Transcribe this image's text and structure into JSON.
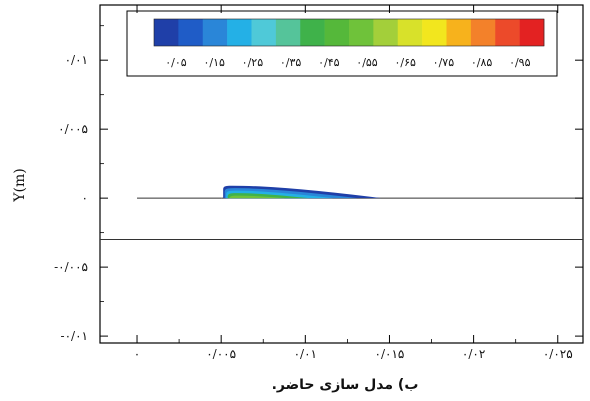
{
  "chart_data": {
    "type": "heatmap",
    "title": "",
    "xlabel": "",
    "ylabel": "Y(m)",
    "xlim": [
      -0.0022,
      0.0265
    ],
    "ylim": [
      -0.0105,
      0.014
    ],
    "x_ticks": [
      0,
      0.005,
      0.01,
      0.015,
      0.02,
      0.025
    ],
    "x_tick_labels": [
      "٠",
      "٠/٠٠۵",
      "٠/٠١",
      "٠/٠١۵",
      "٠/٠٢",
      "٠/٠٢۵"
    ],
    "y_ticks": [
      -0.01,
      -0.005,
      0,
      0.005,
      0.01
    ],
    "y_tick_labels": [
      "-٠/٠١",
      "-٠/٠٠۵",
      "٠",
      "٠/٠٠۵",
      "٠/٠١"
    ],
    "legend": {
      "placement": "top",
      "labels": [
        "٠/٠۵",
        "٠/١۵",
        "٠/٢۵",
        "٠/٣۵",
        "٠/۴۵",
        "٠/۵۵",
        "٠/۶۵",
        "٠/٧۵",
        "٠/٨۵",
        "٠/٩۵"
      ],
      "levels": [
        0.05,
        0.15,
        0.25,
        0.35,
        0.45,
        0.55,
        0.65,
        0.75,
        0.85,
        0.95
      ],
      "colors": [
        "#1f3fa8",
        "#1f5cc7",
        "#2a86d8",
        "#24b0e6",
        "#4fc9d8",
        "#55c49a",
        "#3fb24a",
        "#55b83a",
        "#6fc23a",
        "#a3cf3a",
        "#d8e12a",
        "#f2e61e",
        "#f7b21c",
        "#f3812a",
        "#ec4a2a",
        "#e32222"
      ]
    },
    "lines": [
      {
        "x": [
          0,
          0.005
        ],
        "y": [
          0,
          0
        ]
      },
      {
        "x": [
          0.005,
          0.0265
        ],
        "y": [
          0,
          0
        ]
      },
      {
        "x": [
          -0.0022,
          0.0265
        ],
        "y": [
          -0.003,
          -0.003
        ]
      }
    ],
    "plume": {
      "x_start": 0.005,
      "x_end": 0.0145,
      "y_base": 0,
      "y_top": 0.0009,
      "fill_colors": [
        "#1f3fa8",
        "#2a86d8",
        "#24b0e6",
        "#3fb24a",
        "#6fc23a"
      ]
    }
  },
  "caption": "ب) مدل سازی حاضر."
}
